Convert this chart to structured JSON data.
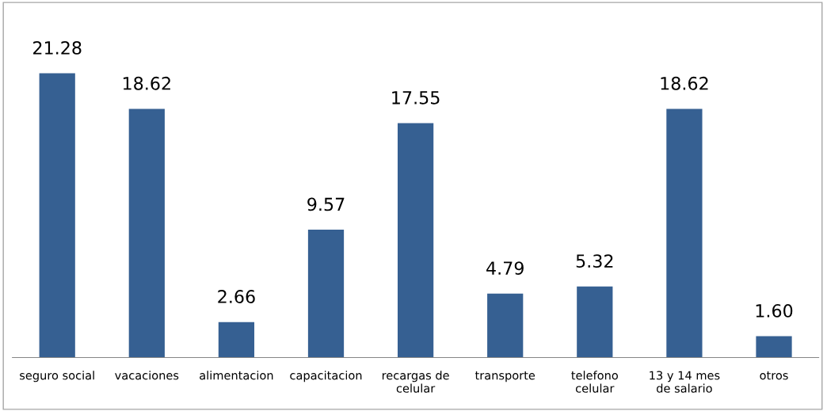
{
  "chart_data": {
    "type": "bar",
    "categories": [
      "seguro social",
      "vacaciones",
      "alimentacion",
      "capacitacion",
      "recargas de\ncelular",
      "transporte",
      "telefono\ncelular",
      "13 y 14 mes\nde salario",
      "otros"
    ],
    "values": [
      21.28,
      18.62,
      2.66,
      9.57,
      17.55,
      4.79,
      5.32,
      18.62,
      1.6
    ],
    "value_labels": [
      "21.28",
      "18.62",
      "2.66",
      "9.57",
      "17.55",
      "4.79",
      "5.32",
      "18.62",
      "1.60"
    ],
    "color": "#366092",
    "grid": false,
    "legend": false
  }
}
